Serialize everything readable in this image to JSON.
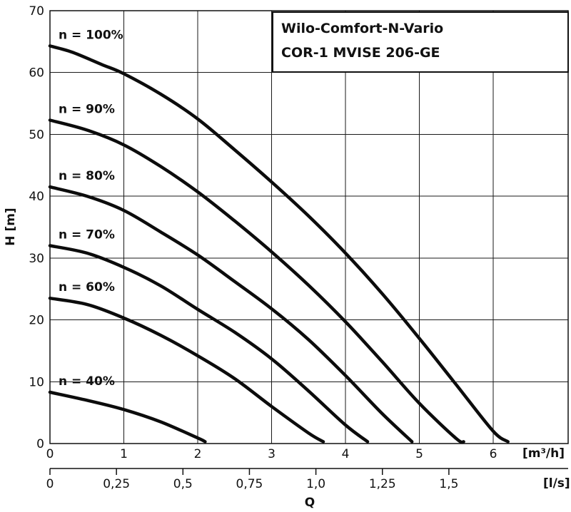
{
  "chart_data": {
    "type": "line",
    "title_lines": [
      "Wilo-Comfort-N-Vario",
      "COR-1 MVISE 206-GE"
    ],
    "xlabel": "Q",
    "ylabel": "H [m]",
    "x_unit_primary": "[m³/h]",
    "x_unit_secondary": "[l/s]",
    "xlim": [
      0,
      7
    ],
    "ylim": [
      0,
      70
    ],
    "x_ticks": [
      "0",
      "1",
      "2",
      "3",
      "4",
      "5",
      "6"
    ],
    "x_ticks_secondary": [
      "0",
      "0,25",
      "0,5",
      "0,75",
      "1,0",
      "1,25",
      "1,5"
    ],
    "y_ticks": [
      "0",
      "10",
      "20",
      "30",
      "40",
      "50",
      "60",
      "70"
    ],
    "grid": true,
    "series": [
      {
        "name": "n = 100%",
        "x": [
          0,
          0.3,
          0.7,
          1.0,
          1.5,
          2.0,
          2.5,
          3.0,
          3.5,
          4.0,
          4.5,
          5.0,
          5.5,
          6.0,
          6.2
        ],
        "y": [
          64.3,
          63.3,
          61.3,
          59.8,
          56.5,
          52.5,
          47.5,
          42.3,
          36.8,
          30.8,
          24.2,
          17.0,
          9.5,
          2.0,
          0.3
        ]
      },
      {
        "name": "n = 90%",
        "x": [
          0,
          0.5,
          1.0,
          1.5,
          2.0,
          2.5,
          3.0,
          3.5,
          4.0,
          4.5,
          5.0,
          5.5,
          5.6
        ],
        "y": [
          52.3,
          50.7,
          48.3,
          44.8,
          40.7,
          36.0,
          31.0,
          25.6,
          19.7,
          13.2,
          6.5,
          0.8,
          0.3
        ]
      },
      {
        "name": "n = 80%",
        "x": [
          0,
          0.5,
          1.0,
          1.5,
          2.0,
          2.5,
          3.0,
          3.5,
          4.0,
          4.5,
          4.9
        ],
        "y": [
          41.5,
          40.0,
          37.7,
          34.2,
          30.5,
          26.2,
          21.8,
          16.8,
          11.0,
          4.8,
          0.3
        ]
      },
      {
        "name": "n = 70%",
        "x": [
          0,
          0.5,
          1.0,
          1.5,
          2.0,
          2.5,
          3.0,
          3.5,
          4.0,
          4.3
        ],
        "y": [
          32.0,
          30.8,
          28.5,
          25.5,
          21.7,
          18.0,
          13.7,
          8.5,
          3.0,
          0.3
        ]
      },
      {
        "name": "n = 60%",
        "x": [
          0,
          0.5,
          1.0,
          1.5,
          2.0,
          2.5,
          3.0,
          3.5,
          3.7
        ],
        "y": [
          23.5,
          22.5,
          20.3,
          17.5,
          14.2,
          10.5,
          6.0,
          1.7,
          0.3
        ]
      },
      {
        "name": "n = 40%",
        "x": [
          0,
          0.5,
          1.0,
          1.5,
          2.0,
          2.1
        ],
        "y": [
          8.3,
          7.0,
          5.5,
          3.5,
          0.9,
          0.3
        ]
      }
    ]
  }
}
